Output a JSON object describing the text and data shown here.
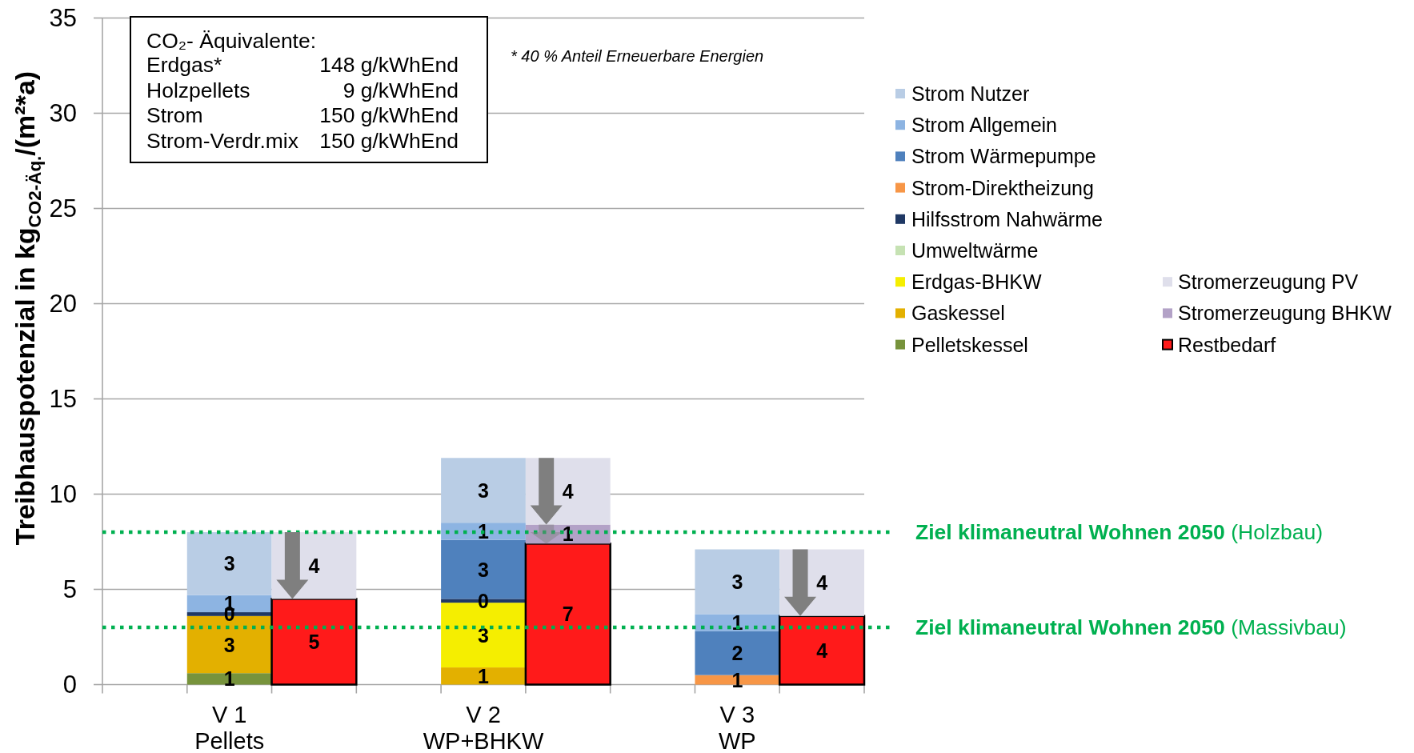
{
  "chart_data": {
    "type": "bar",
    "stacked": true,
    "ylabel": "Treibhauspotenzial in kg$_{CO2-Äq.}$/(m²*a)",
    "categories": [
      null,
      "V 1\nPellets",
      null,
      null,
      "V 2\nWP+BHKW",
      null,
      null,
      "V 3\nWP",
      null
    ],
    "ylim": [
      0,
      35
    ],
    "yticks": [
      0,
      5,
      10,
      15,
      20,
      25,
      30,
      35
    ],
    "grid": "y",
    "legend": "right",
    "series": [
      {
        "name": "Pelletskessel",
        "color": "#77933c",
        "values": [
          null,
          0.6,
          null,
          null,
          null,
          null,
          null,
          null,
          null
        ],
        "value_labels": [
          null,
          "1",
          null,
          null,
          null,
          null,
          null,
          null,
          null
        ]
      },
      {
        "name": "Gaskessel",
        "color": "#e3b000",
        "values": [
          null,
          3.0,
          null,
          null,
          0.9,
          null,
          null,
          null,
          null
        ],
        "value_labels": [
          null,
          "3",
          null,
          null,
          "1",
          null,
          null,
          null,
          null
        ]
      },
      {
        "name": "Erdgas-BHKW",
        "color": "#f5ee00",
        "values": [
          null,
          null,
          null,
          null,
          3.4,
          null,
          null,
          null,
          null
        ],
        "value_labels": [
          null,
          null,
          null,
          null,
          "3",
          null,
          null,
          null,
          null
        ]
      },
      {
        "name": "Umweltwärme",
        "color": "#c6e2b3",
        "values": [
          null,
          null,
          null,
          null,
          null,
          null,
          null,
          null,
          null
        ]
      },
      {
        "name": "Hilfsstrom Nahwärme",
        "color": "#1f3864",
        "values": [
          null,
          0.2,
          null,
          null,
          0.2,
          null,
          null,
          null,
          null
        ],
        "value_labels": [
          null,
          "0",
          null,
          null,
          "0",
          null,
          null,
          null,
          null
        ]
      },
      {
        "name": "Strom-Direktheizung",
        "color": "#f79646",
        "values": [
          null,
          null,
          null,
          null,
          null,
          null,
          null,
          0.5,
          null
        ],
        "value_labels": [
          null,
          null,
          null,
          null,
          null,
          null,
          null,
          "1",
          null
        ]
      },
      {
        "name": "Strom Wärmepumpe",
        "color": "#4f81bd",
        "values": [
          null,
          null,
          null,
          null,
          3.1,
          null,
          null,
          2.3,
          null
        ],
        "value_labels": [
          null,
          null,
          null,
          null,
          "3",
          null,
          null,
          "2",
          null
        ]
      },
      {
        "name": "Strom Allgemein",
        "color": "#8db4e2",
        "values": [
          null,
          0.9,
          null,
          null,
          0.9,
          null,
          null,
          0.9,
          null
        ],
        "value_labels": [
          null,
          "1",
          null,
          null,
          "1",
          null,
          null,
          "1",
          null
        ]
      },
      {
        "name": "Strom Nutzer",
        "color": "#b9cde5",
        "values": [
          null,
          3.3,
          null,
          null,
          3.4,
          null,
          null,
          3.4,
          null
        ],
        "value_labels": [
          null,
          "3",
          null,
          null,
          "3",
          null,
          null,
          "3",
          null
        ]
      },
      {
        "name": "Restbedarf",
        "color": "#ff1a1a",
        "values": [
          null,
          null,
          4.5,
          null,
          null,
          7.4,
          null,
          null,
          3.6
        ],
        "value_labels": [
          null,
          null,
          "5",
          null,
          null,
          "7",
          null,
          null,
          "4"
        ]
      },
      {
        "name": "Stromerzeugung BHKW",
        "color": "#b3a2c7",
        "values": [
          null,
          null,
          null,
          null,
          null,
          1.0,
          null,
          null,
          null
        ],
        "value_labels": [
          null,
          null,
          null,
          null,
          null,
          "1",
          null,
          null,
          null
        ]
      },
      {
        "name": "Stromerzeugung PV",
        "color": "#dfdfeb",
        "values": [
          null,
          null,
          3.5,
          null,
          null,
          3.5,
          null,
          null,
          3.5
        ],
        "value_labels": [
          null,
          null,
          "4",
          null,
          null,
          "4",
          null,
          null,
          "4"
        ]
      }
    ],
    "ref_lines": [
      {
        "axis": "y",
        "value": 8,
        "label": "Ziel klimaneutral Wohnen 2050 (Holzbau)",
        "color": "#00b050",
        "line_style": "dotted"
      },
      {
        "axis": "y",
        "value": 3,
        "label": "Ziel klimaneutral Wohnen 2050 (Massivbau)",
        "color": "#00b050",
        "line_style": "dotted"
      }
    ],
    "annotations": [
      "CO₂- Äquivalente:",
      "Erdgas*",
      "148 g/kWhEnd",
      "Holzpellets",
      "9 g/kWhEnd",
      "Strom",
      "150 g/kWhEnd",
      "Strom-Verdr.mix",
      "150 g/kWhEnd",
      "* 40 % Anteil Erneuerbare Energien"
    ]
  }
}
